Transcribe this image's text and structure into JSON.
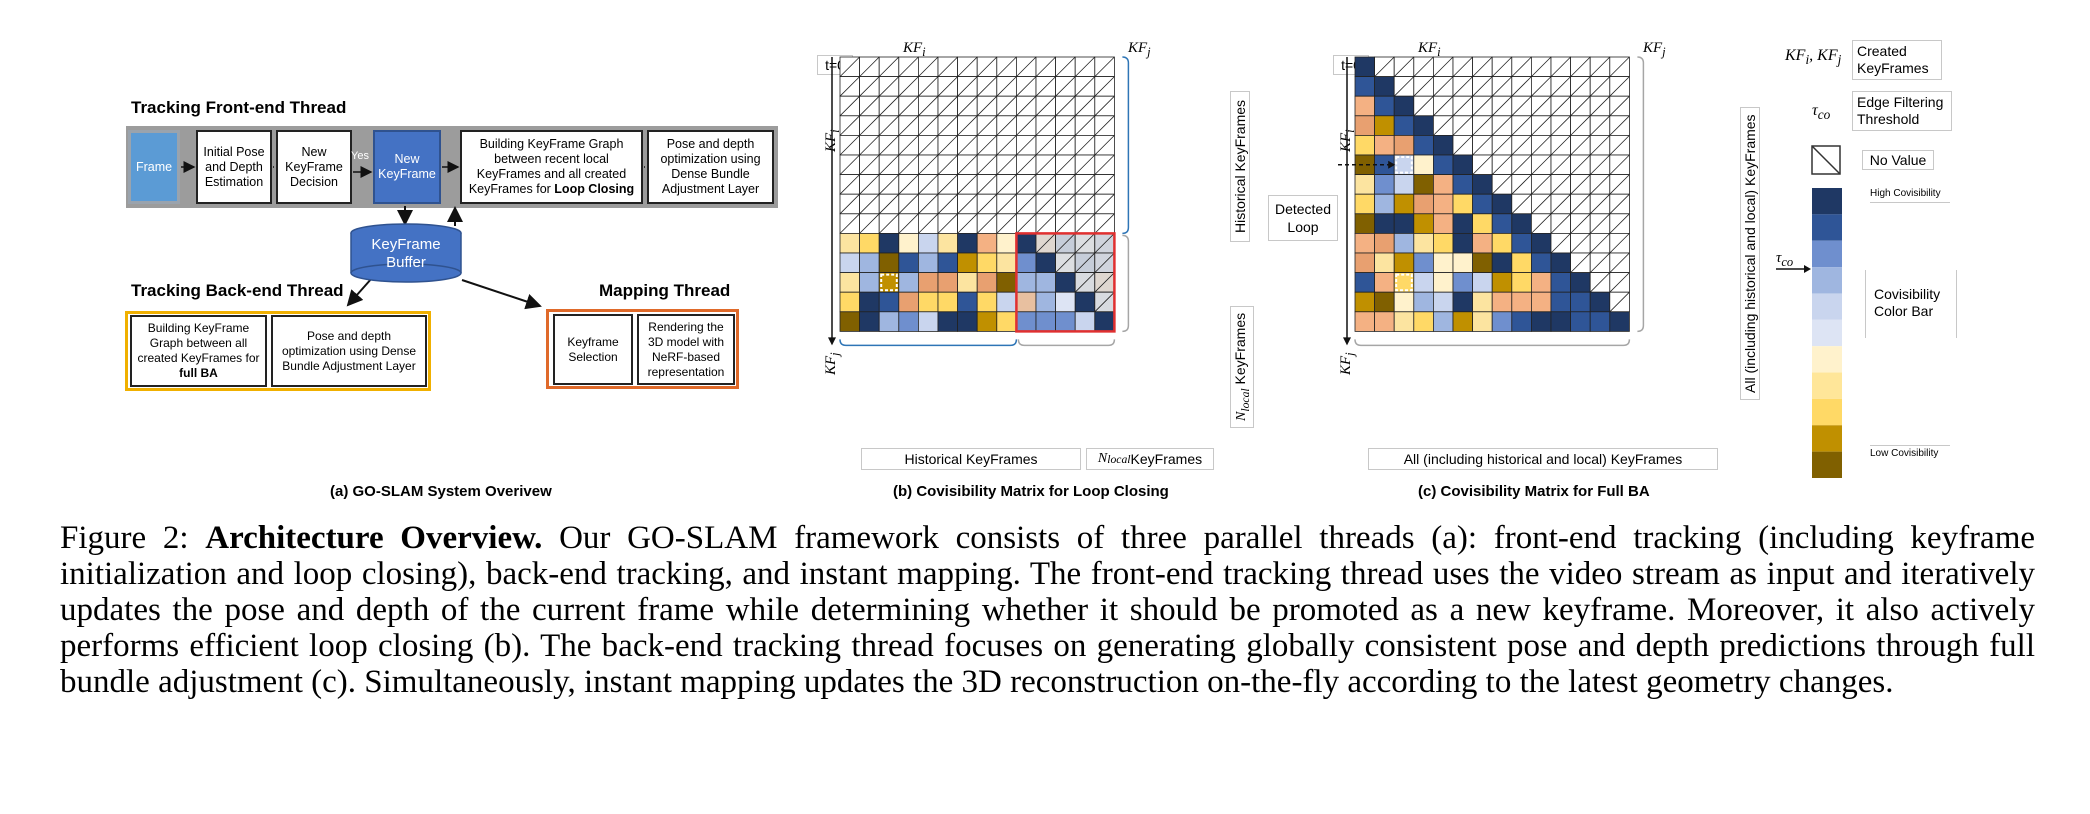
{
  "panel_a": {
    "front_title": "Tracking Front-end Thread",
    "front_boxes": [
      "Frame",
      "Initial Pose and Depth Estimation",
      "New KeyFrame Decision",
      "New KeyFrame",
      "Building KeyFrame Graph between recent local KeyFrames and all created KeyFrames for",
      "Pose and depth optimization using Dense Bundle Adjustment Layer"
    ],
    "front_box4_bold": "Loop Closing",
    "yes_label": "Yes",
    "buffer": "KeyFrame Buffer",
    "back_title": "Tracking Back-end Thread",
    "back_boxes": [
      "Building KeyFrame Graph between all created KeyFrames for",
      "Pose and depth optimization using Dense Bundle Adjustment Layer"
    ],
    "back_box1_bold": "full BA",
    "mapping_title": "Mapping Thread",
    "mapping_boxes": [
      "Keyframe Selection",
      "Rendering the 3D model with NeRF-based representation"
    ],
    "caption": "(a) GO-SLAM System Overivew"
  },
  "panel_b": {
    "t0": "t=0",
    "kfi": "KF",
    "kfi_sub": "i",
    "kfj": "KF",
    "kfj_sub": "j",
    "right_top": "Historical KeyFrames",
    "right_bottom_pre": "N",
    "right_bottom_sub": "local",
    "right_bottom_post": " KeyFrames",
    "bottom_left": "Historical KeyFrames",
    "bottom_right_pre": "N",
    "bottom_right_sub": "local",
    "bottom_right_post": " KeyFrames",
    "caption": "(b) Covisibility Matrix for Loop Closing"
  },
  "panel_c": {
    "t0": "t=0",
    "kfi": "KF",
    "kfi_sub": "i",
    "kfj": "KF",
    "kfj_sub": "j",
    "detected_loop": "Detected Loop",
    "right_label": "All (including historical and local) KeyFrames",
    "bottom_label": "All (including historical and local) KeyFrames",
    "caption": "(c) Covisibility Matrix for Full BA"
  },
  "legend": {
    "kf_symbol": "KF",
    "created": "Created KeyFrames",
    "tau_symbol": "τ",
    "tau_sub": "co",
    "edge_filter": "Edge Filtering Threshold",
    "no_value": "No Value",
    "high": "High Covisibility",
    "colorbar": "Covisibility Color Bar",
    "low": "Low Covisibility",
    "colors": [
      "#1f3864",
      "#2f5597",
      "#6f8fce",
      "#9fb6e0",
      "#c9d5ee",
      "#dde4f4",
      "#fff2cc",
      "#ffe699",
      "#ffd966",
      "#c09000",
      "#806000"
    ]
  },
  "caption": {
    "label": "Figure 2:",
    "title": "Architecture Overview.",
    "text": "Our GO-SLAM framework consists of three parallel threads (a): front-end tracking (including keyframe initialization and loop closing), back-end tracking, and instant mapping. The front-end tracking thread uses the video stream as input and iteratively updates the pose and depth of the current frame while determining whether it should be promoted as a new keyframe. Moreover, it also actively performs efficient loop closing (b). The back-end tracking thread focuses on generating globally consistent pose and depth predictions through full bundle adjustment (c). Simultaneously, instant mapping updates the 3D reconstruction on-the-fly according to the latest geometry changes."
  }
}
